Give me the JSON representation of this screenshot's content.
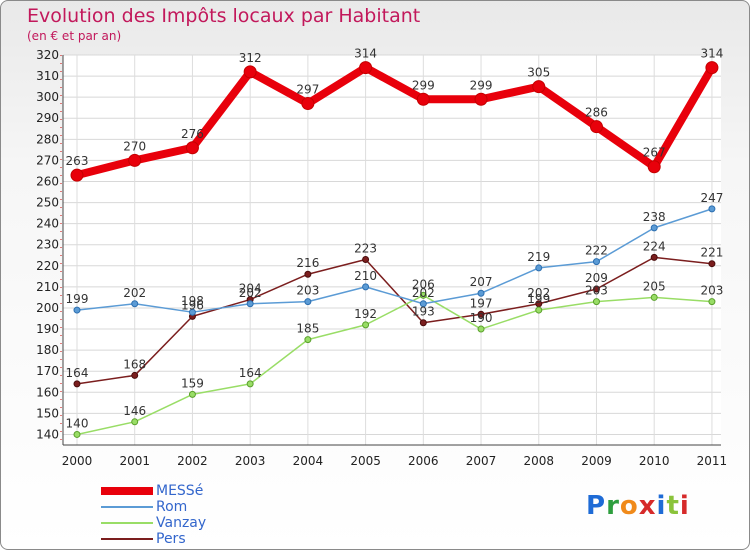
{
  "title": "Evolution des Impôts locaux par Habitant",
  "subtitle": "(en € et par an)",
  "logo": {
    "text": "Proxiti",
    "colors": [
      "#1e6bd6",
      "#2e9e3e",
      "#f08a1a",
      "#d62a2a",
      "#1e6bd6",
      "#8ac33a",
      "#d62a2a"
    ]
  },
  "chart_data": {
    "type": "line",
    "x": [
      "2000",
      "2001",
      "2002",
      "2003",
      "2004",
      "2005",
      "2006",
      "2007",
      "2008",
      "2009",
      "2010",
      "2011"
    ],
    "ylim": [
      135,
      320
    ],
    "yticks": [
      140,
      150,
      160,
      170,
      180,
      190,
      200,
      210,
      220,
      230,
      240,
      250,
      260,
      270,
      280,
      290,
      300,
      310,
      320
    ],
    "grid": true,
    "legend_position": "bottom-left",
    "series": [
      {
        "name": "MESSé",
        "color": "#e8000b",
        "values": [
          263,
          270,
          276,
          312,
          297,
          314,
          299,
          299,
          305,
          286,
          267,
          314
        ]
      },
      {
        "name": "Rom",
        "color": "#5b9bd5",
        "values": [
          199,
          202,
          198,
          202,
          203,
          210,
          202,
          207,
          219,
          222,
          238,
          247
        ]
      },
      {
        "name": "Vanzay",
        "color": "#99dd66",
        "values": [
          140,
          146,
          159,
          164,
          185,
          192,
          206,
          190,
          199,
          203,
          205,
          203
        ]
      },
      {
        "name": "Pers",
        "color": "#7b1e1e",
        "values": [
          164,
          168,
          196,
          204,
          216,
          223,
          193,
          197,
          202,
          209,
          224,
          221
        ]
      }
    ],
    "data_labels": [
      [
        "263",
        "270",
        "276",
        "312",
        "297",
        "314",
        "299",
        "299",
        "305",
        "286",
        "267",
        "314"
      ],
      [
        "199",
        "202",
        "198",
        "202",
        "203",
        "210",
        "202",
        "207",
        "219",
        "222",
        "238",
        "247"
      ],
      [
        "140",
        "146",
        "159",
        "164",
        "185",
        "192",
        "206",
        "190",
        "199",
        "203",
        "205",
        "203"
      ],
      [
        "164",
        "168",
        "196",
        "204",
        "216",
        "223",
        "193",
        "197",
        "202",
        "209",
        "224",
        "221"
      ]
    ]
  }
}
